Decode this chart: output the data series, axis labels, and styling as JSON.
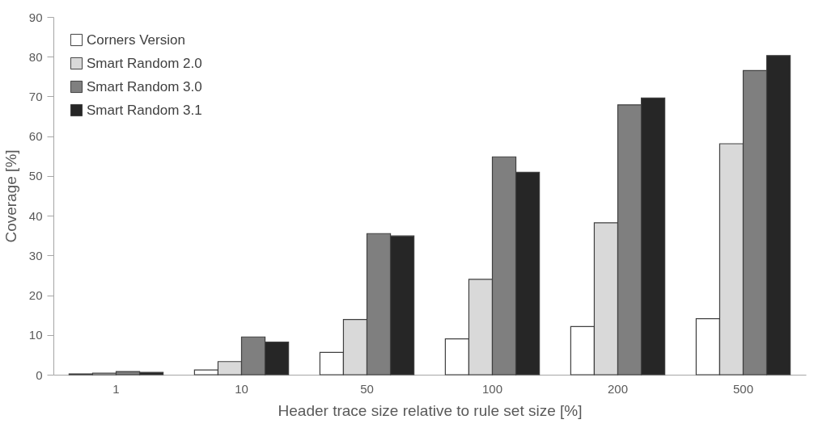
{
  "chart_data": {
    "type": "bar",
    "xlabel": "Header trace size relative to rule set size [%]",
    "ylabel": "Coverage [%]",
    "categories": [
      "1",
      "10",
      "50",
      "100",
      "200",
      "500"
    ],
    "series": [
      {
        "name": "Corners Version",
        "color": "#ffffff",
        "values": [
          0.2,
          1.2,
          5.6,
          9.0,
          12.1,
          14.1
        ]
      },
      {
        "name": "Smart Random 2.0",
        "color": "#d9d9d9",
        "values": [
          0.4,
          3.3,
          13.9,
          24.0,
          38.2,
          58.1
        ]
      },
      {
        "name": "Smart Random 3.0",
        "color": "#7f7f7f",
        "values": [
          0.8,
          9.5,
          35.5,
          54.8,
          67.9,
          76.5
        ]
      },
      {
        "name": "Smart Random 3.1",
        "color": "#262626",
        "values": [
          0.6,
          8.2,
          34.9,
          50.9,
          69.6,
          80.3
        ]
      }
    ],
    "ylim": [
      0,
      90
    ],
    "yticks": [
      0,
      10,
      20,
      30,
      40,
      50,
      60,
      70,
      80,
      90
    ],
    "grid": false,
    "legend": "top left"
  }
}
